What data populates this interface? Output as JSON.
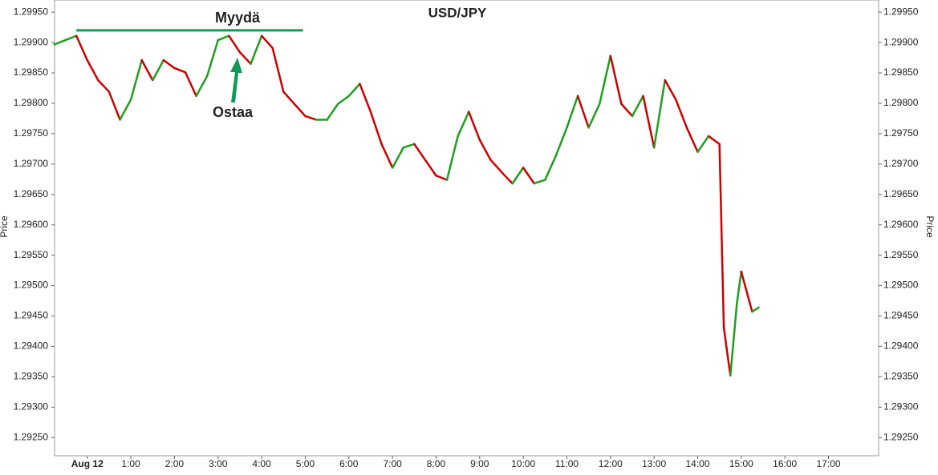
{
  "chart_data": {
    "type": "line",
    "title": "USD/JPY",
    "y_label": "Price",
    "x": [
      -0.75,
      -0.5,
      -0.25,
      0,
      0.25,
      0.5,
      0.75,
      1,
      1.25,
      1.5,
      1.75,
      2,
      2.25,
      2.5,
      2.75,
      3,
      3.25,
      3.5,
      3.75,
      4,
      4.25,
      4.5,
      4.75,
      5,
      5.25,
      5.5,
      5.75,
      6,
      6.25,
      6.5,
      6.75,
      7,
      7.25,
      7.5,
      7.75,
      8,
      8.25,
      8.5,
      8.75,
      9,
      9.25,
      9.5,
      9.75,
      10,
      10.25,
      10.5,
      10.75,
      11,
      11.25,
      11.5,
      11.75,
      12,
      12.25,
      12.5,
      12.75,
      13,
      13.25,
      13.5,
      13.75,
      14,
      14.25,
      14.5,
      14.6,
      14.75,
      14.9,
      15,
      15.25,
      15.4
    ],
    "series": [
      {
        "name": "USD/JPY",
        "up_color": "#1e9e1e",
        "down_color": "#cc0000",
        "values": [
          1.29897,
          1.29904,
          1.29911,
          1.29871,
          1.29838,
          1.29819,
          1.29773,
          1.29806,
          1.29871,
          1.29838,
          1.29871,
          1.29858,
          1.29851,
          1.29812,
          1.29845,
          1.29904,
          1.29911,
          1.29884,
          1.29865,
          1.29911,
          1.29891,
          1.29819,
          1.29799,
          1.29779,
          1.29773,
          1.29773,
          1.29799,
          1.29812,
          1.29832,
          1.29786,
          1.29733,
          1.29694,
          1.29727,
          1.29733,
          1.29707,
          1.29681,
          1.29674,
          1.29746,
          1.29786,
          1.2974,
          1.29707,
          1.29687,
          1.29668,
          1.29694,
          1.29668,
          1.29674,
          1.29714,
          1.2976,
          1.29812,
          1.2976,
          1.29799,
          1.29878,
          1.29799,
          1.29779,
          1.29812,
          1.29727,
          1.29838,
          1.29806,
          1.2976,
          1.2972,
          1.29746,
          1.29733,
          1.29431,
          1.29352,
          1.29471,
          1.29523,
          1.29457,
          1.29464
        ]
      }
    ],
    "xlim": [
      -0.75,
      18.15
    ],
    "xticks": [
      {
        "value": 0,
        "label": "Aug 12"
      },
      {
        "value": 1,
        "label": "1:00"
      },
      {
        "value": 2,
        "label": "2:00"
      },
      {
        "value": 3,
        "label": "3:00"
      },
      {
        "value": 4,
        "label": "4:00"
      },
      {
        "value": 5,
        "label": "5:00"
      },
      {
        "value": 6,
        "label": "6:00"
      },
      {
        "value": 7,
        "label": "7:00"
      },
      {
        "value": 8,
        "label": "8:00"
      },
      {
        "value": 9,
        "label": "9:00"
      },
      {
        "value": 10,
        "label": "10:00"
      },
      {
        "value": 11,
        "label": "11:00"
      },
      {
        "value": 12,
        "label": "12:00"
      },
      {
        "value": 13,
        "label": "13:00"
      },
      {
        "value": 14,
        "label": "14:00"
      },
      {
        "value": 15,
        "label": "15:00"
      },
      {
        "value": 16,
        "label": "16:00"
      },
      {
        "value": 17,
        "label": "17:00"
      }
    ],
    "ylim": [
      1.2922,
      1.2997
    ],
    "yticks": [
      {
        "value": 1.2925,
        "label": "1.29250"
      },
      {
        "value": 1.293,
        "label": "1.29300"
      },
      {
        "value": 1.2935,
        "label": "1.29350"
      },
      {
        "value": 1.294,
        "label": "1.29400"
      },
      {
        "value": 1.2945,
        "label": "1.29450"
      },
      {
        "value": 1.295,
        "label": "1.29500"
      },
      {
        "value": 1.2955,
        "label": "1.29550"
      },
      {
        "value": 1.296,
        "label": "1.29600"
      },
      {
        "value": 1.2965,
        "label": "1.29650"
      },
      {
        "value": 1.297,
        "label": "1.29700"
      },
      {
        "value": 1.2975,
        "label": "1.29750"
      },
      {
        "value": 1.298,
        "label": "1.29800"
      },
      {
        "value": 1.2985,
        "label": "1.29850"
      },
      {
        "value": 1.299,
        "label": "1.29900"
      },
      {
        "value": 1.2995,
        "label": "1.29950"
      }
    ],
    "annotations": [
      {
        "text": "Myydä",
        "y": 1.2992,
        "x": [
          -0.25,
          4.95
        ],
        "color": "#119955"
      },
      {
        "text": "Ostaa",
        "color": "#119955"
      }
    ]
  }
}
